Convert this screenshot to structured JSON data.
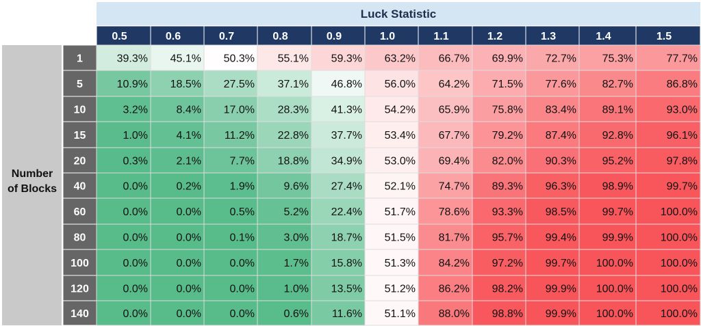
{
  "chart_data": {
    "type": "heatmap",
    "title": "Luck Statistic",
    "ylabel": "Number of Blocks",
    "x": [
      "0.5",
      "0.6",
      "0.7",
      "0.8",
      "0.9",
      "1.0",
      "1.1",
      "1.2",
      "1.3",
      "1.4",
      "1.5"
    ],
    "y": [
      "1",
      "5",
      "10",
      "15",
      "20",
      "40",
      "60",
      "80",
      "100",
      "120",
      "140"
    ],
    "values": [
      [
        39.3,
        45.1,
        50.3,
        55.1,
        59.3,
        63.2,
        66.7,
        69.9,
        72.7,
        75.3,
        77.7
      ],
      [
        10.9,
        18.5,
        27.5,
        37.1,
        46.8,
        56.0,
        64.2,
        71.5,
        77.6,
        82.7,
        86.8
      ],
      [
        3.2,
        8.4,
        17.0,
        28.3,
        41.3,
        54.2,
        65.9,
        75.8,
        83.4,
        89.1,
        93.0
      ],
      [
        1.0,
        4.1,
        11.2,
        22.8,
        37.7,
        53.4,
        67.7,
        79.2,
        87.4,
        92.8,
        96.1
      ],
      [
        0.3,
        2.1,
        7.7,
        18.8,
        34.9,
        53.0,
        69.4,
        82.0,
        90.3,
        95.2,
        97.8
      ],
      [
        0.0,
        0.2,
        1.9,
        9.6,
        27.4,
        52.1,
        74.7,
        89.3,
        96.3,
        98.9,
        99.7
      ],
      [
        0.0,
        0.0,
        0.5,
        5.2,
        22.4,
        51.7,
        78.6,
        93.3,
        98.5,
        99.7,
        100.0
      ],
      [
        0.0,
        0.0,
        0.1,
        3.0,
        18.7,
        51.5,
        81.7,
        95.7,
        99.4,
        99.9,
        100.0
      ],
      [
        0.0,
        0.0,
        0.0,
        1.7,
        15.8,
        51.3,
        84.2,
        97.2,
        99.7,
        100.0,
        100.0
      ],
      [
        0.0,
        0.0,
        0.0,
        1.0,
        13.5,
        51.2,
        86.2,
        98.2,
        99.9,
        100.0,
        100.0
      ],
      [
        0.0,
        0.0,
        0.0,
        0.6,
        11.6,
        51.1,
        88.0,
        98.8,
        99.9,
        100.0,
        100.0
      ]
    ],
    "value_format": "percent_1dp",
    "colors": {
      "low": "#57bb8a",
      "mid": "#ffffff",
      "high": "#f8555a",
      "title_band": "#d4e6f4",
      "header": "#1f3864",
      "row_header": "#666666",
      "side_label": "#c9c9c9",
      "gridline": "#dddddd"
    },
    "grid": true,
    "legend": "none"
  }
}
